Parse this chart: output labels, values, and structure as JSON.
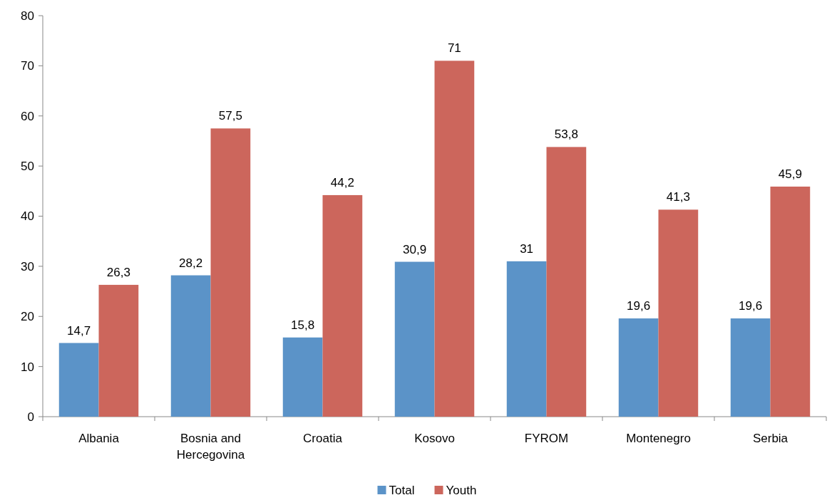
{
  "chart_data": {
    "type": "bar",
    "categories": [
      "Albania",
      "Bosnia and Hercegovina",
      "Croatia",
      "Kosovo",
      "FYROM",
      "Montenegro",
      "Serbia"
    ],
    "series": [
      {
        "name": "Total",
        "color": "#5b93c8",
        "values": [
          14.7,
          28.2,
          15.8,
          30.9,
          31,
          19.6,
          19.6
        ],
        "value_labels": [
          "14,7",
          "28,2",
          "15,8",
          "30,9",
          "31",
          "19,6",
          "19,6"
        ]
      },
      {
        "name": "Youth",
        "color": "#cc665c",
        "values": [
          26.3,
          57.5,
          44.2,
          71,
          53.8,
          41.3,
          45.9
        ],
        "value_labels": [
          "26,3",
          "57,5",
          "44,2",
          "71",
          "53,8",
          "41,3",
          "45,9"
        ]
      }
    ],
    "ylim": [
      0,
      80
    ],
    "yticks": [
      0,
      10,
      20,
      30,
      40,
      50,
      60,
      70,
      80
    ],
    "grid": false,
    "legend": "bottom"
  }
}
